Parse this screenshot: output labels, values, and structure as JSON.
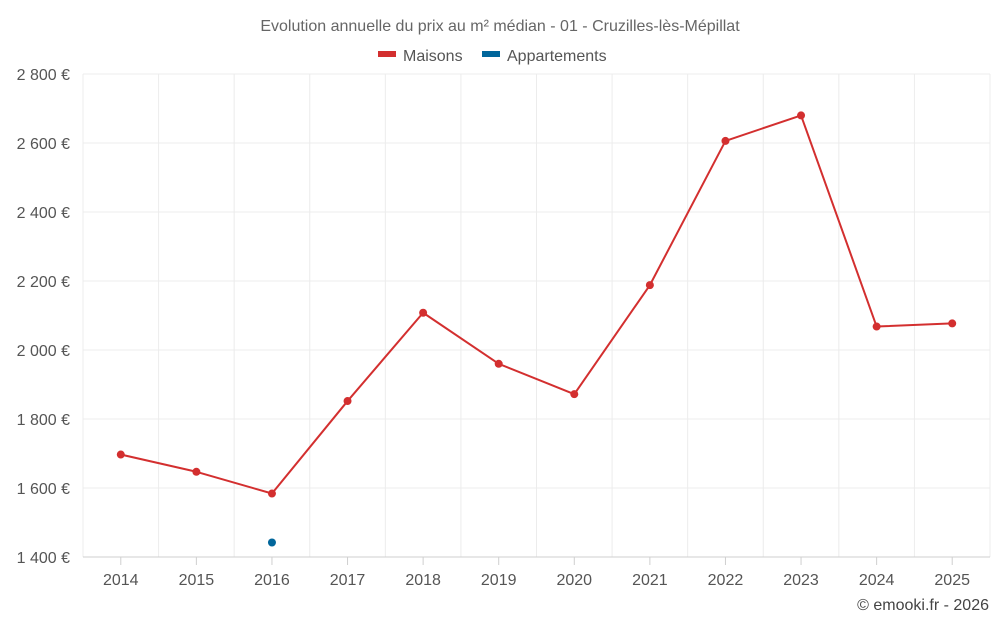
{
  "chart_data": {
    "type": "line",
    "title": "Evolution annuelle du prix au m² médian - 01 - Cruzilles-lès-Mépillat",
    "categories": [
      "2014",
      "2015",
      "2016",
      "2017",
      "2018",
      "2019",
      "2020",
      "2021",
      "2022",
      "2023",
      "2024",
      "2025"
    ],
    "series": [
      {
        "name": "Maisons",
        "color": "#d32f2f",
        "values": [
          1697,
          1647,
          1584,
          1852,
          2108,
          1960,
          1872,
          2188,
          2606,
          2680,
          2068,
          2077
        ]
      },
      {
        "name": "Appartements",
        "color": "#01669b",
        "values": [
          null,
          null,
          1442,
          null,
          null,
          null,
          null,
          null,
          null,
          null,
          null,
          null
        ]
      }
    ],
    "ylim": [
      1400,
      2800
    ],
    "yticks": [
      1400,
      1600,
      1800,
      2000,
      2200,
      2400,
      2600,
      2800
    ],
    "ytick_labels": [
      "1 400 €",
      "1 600 €",
      "1 800 €",
      "2 000 €",
      "2 200 €",
      "2 400 €",
      "2 600 €",
      "2 800 €"
    ],
    "grid": true,
    "legend_position": "top-center"
  },
  "credit": "© emooki.fr - 2026"
}
